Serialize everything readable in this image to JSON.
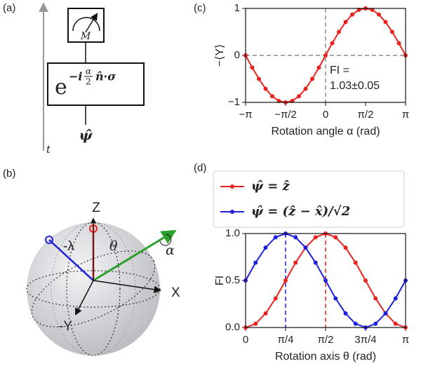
{
  "panel_labels": [
    "(a)",
    "(b)",
    "(c)",
    "(d)"
  ],
  "circuit": {
    "meter_label": "M",
    "gate_base": "e",
    "gate_exp_prefix": "−i",
    "gate_frac_num": "α",
    "gate_frac_den": "2",
    "gate_exp_suffix": "n̂·σ",
    "input": "ψ̂",
    "time_label": "t"
  },
  "bloch": {
    "z_label": "Z",
    "x_label": "X",
    "y_label": "-Y",
    "lambda_label": "-λ",
    "theta_label": "θ",
    "alpha_label": "α"
  },
  "chart_data": [
    {
      "type": "line",
      "xlabel": "Rotation angle α (rad)",
      "ylabel": "−⟨Y⟩",
      "x": [
        -3.1416,
        -2.8798,
        -2.618,
        -2.3562,
        -2.0944,
        -1.8326,
        -1.5708,
        -1.309,
        -1.0472,
        -0.7854,
        -0.5236,
        -0.2618,
        0,
        0.2618,
        0.5236,
        0.7854,
        1.0472,
        1.309,
        1.5708,
        1.8326,
        2.0944,
        2.3562,
        2.618,
        2.8798,
        3.1416
      ],
      "values": [
        0,
        -0.26,
        -0.5,
        -0.71,
        -0.87,
        -0.97,
        -1,
        -0.97,
        -0.87,
        -0.71,
        -0.5,
        -0.26,
        0,
        0.26,
        0.5,
        0.71,
        0.87,
        0.97,
        1,
        0.97,
        0.87,
        0.71,
        0.5,
        0.26,
        0
      ],
      "color": "#e8231f",
      "xlim": [
        -3.1416,
        3.1416
      ],
      "xticks": [
        {
          "value": -3.1416,
          "label": "−π"
        },
        {
          "value": -1.5708,
          "label": "−π/2"
        },
        0,
        {
          "value": 1.5708,
          "label": "π/2"
        },
        {
          "value": 3.1416,
          "label": "π"
        }
      ],
      "ylim": [
        -1,
        1
      ],
      "yticks": [
        {
          "value": -1,
          "label": "−1"
        },
        0,
        1
      ],
      "reference_lines": [
        {
          "axis": "x",
          "value": 0,
          "color": "#8c8c8c"
        },
        {
          "axis": "y",
          "value": 0,
          "color": "#8c8c8c"
        }
      ],
      "annotation": [
        "FI =",
        "1.03±0.05"
      ]
    },
    {
      "type": "line",
      "xlabel": "Rotation axis θ (rad)",
      "ylabel": "FI",
      "legend": "above",
      "x": [
        0,
        0.1963,
        0.3927,
        0.589,
        0.7854,
        0.9817,
        1.1781,
        1.3744,
        1.5708,
        1.7671,
        1.9635,
        2.1598,
        2.3562,
        2.5525,
        2.7489,
        2.9452,
        3.1416
      ],
      "series": [
        {
          "name": "ψ̂ = ẑ",
          "color": "#e8231f",
          "values": [
            0,
            0.04,
            0.15,
            0.31,
            0.5,
            0.69,
            0.85,
            0.96,
            1,
            0.96,
            0.85,
            0.69,
            0.5,
            0.31,
            0.15,
            0.04,
            0
          ]
        },
        {
          "name": "ψ̂ = (ẑ − x̂)/√2",
          "color": "#1f1fe0",
          "values": [
            0.5,
            0.69,
            0.85,
            0.96,
            1,
            0.96,
            0.85,
            0.69,
            0.5,
            0.31,
            0.15,
            0.04,
            0,
            0.04,
            0.15,
            0.31,
            0.5
          ]
        }
      ],
      "xlim": [
        0,
        3.1416
      ],
      "xticks": [
        0,
        {
          "value": 0.7854,
          "label": "π/4"
        },
        {
          "value": 1.5708,
          "label": "π/2"
        },
        {
          "value": 2.3562,
          "label": "3π/4"
        },
        {
          "value": 3.1416,
          "label": "π"
        }
      ],
      "ylim": [
        0,
        1
      ],
      "yticks": [
        {
          "value": 0,
          "label": "0.0"
        },
        0.5,
        {
          "value": 1,
          "label": "1.0"
        }
      ],
      "reference_lines": [
        {
          "axis": "x",
          "value": 0.7854,
          "color": "#1f1fe0"
        },
        {
          "axis": "x",
          "value": 1.5708,
          "color": "#e8231f"
        }
      ]
    }
  ]
}
